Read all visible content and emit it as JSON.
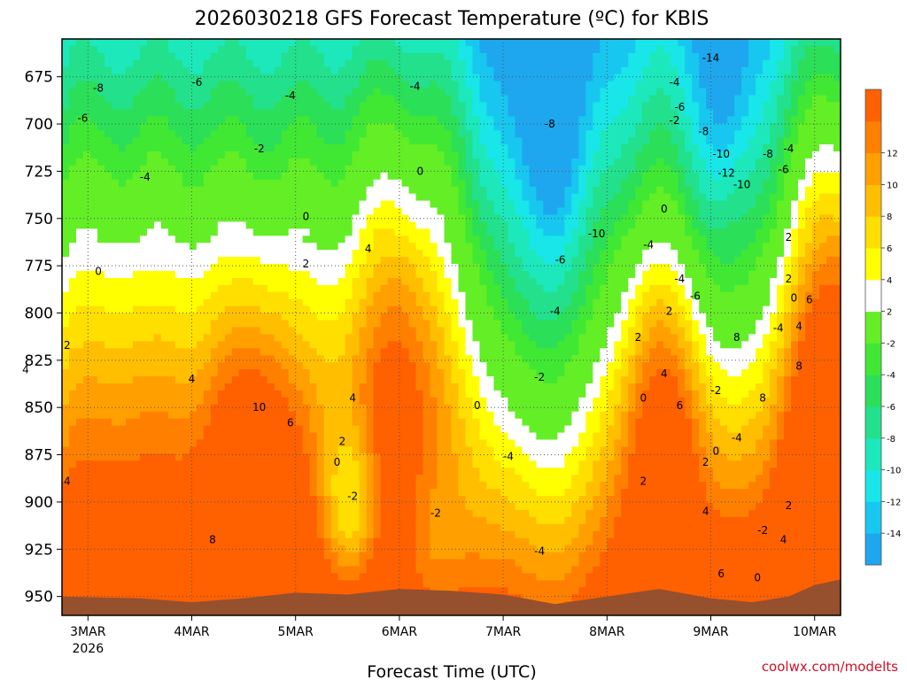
{
  "chart_data": {
    "type": "heatmap",
    "title": "2026030218 GFS Forecast Temperature (ºC) for KBIS",
    "xlabel": "Forecast Time (UTC)",
    "ylabel": "",
    "credit": "coolwx.com/modelts",
    "y_axis": {
      "ticks": [
        "675",
        "700",
        "725",
        "750",
        "775",
        "800",
        "825",
        "850",
        "875",
        "900",
        "925",
        "950"
      ],
      "range": [
        960,
        655
      ],
      "inverted": true
    },
    "x_axis": {
      "ticks": [
        "3MAR",
        "4MAR",
        "5MAR",
        "6MAR",
        "7MAR",
        "8MAR",
        "9MAR",
        "10MAR"
      ],
      "first_tick_year": "2026",
      "range": [
        "2026-03-02T18Z",
        "2026-03-10T06Z"
      ]
    },
    "colorbar": {
      "levels": [
        -16,
        -14,
        -12,
        -10,
        -8,
        -6,
        -4,
        -2,
        2,
        4,
        6,
        8,
        10,
        12,
        14
      ],
      "tick_labels": [
        "-14",
        "-12",
        "-10",
        "-8",
        "-6",
        "-4",
        "-2",
        "2",
        "4",
        "6",
        "8",
        "10",
        "12"
      ],
      "colors": [
        "#1ea7ee",
        "#18c7f0",
        "#18e6e8",
        "#1ce8bc",
        "#22e08c",
        "#2cdf58",
        "#40e834",
        "#64ee26",
        "#ffffff",
        "#ffff00",
        "#ffdf00",
        "#ffbf00",
        "#ffa000",
        "#ff8000",
        "#ff6000"
      ]
    },
    "contour_labels": [
      {
        "t": 3.1,
        "p": 681,
        "v": "-8"
      },
      {
        "t": 4.05,
        "p": 678,
        "v": "-6"
      },
      {
        "t": 4.95,
        "p": 685,
        "v": "-4"
      },
      {
        "t": 6.15,
        "p": 680,
        "v": "-4"
      },
      {
        "t": 2.95,
        "p": 697,
        "v": "-6"
      },
      {
        "t": 4.65,
        "p": 713,
        "v": "-2"
      },
      {
        "t": 3.55,
        "p": 728,
        "v": "-4"
      },
      {
        "t": 6.2,
        "p": 725,
        "v": "0"
      },
      {
        "t": 5.1,
        "p": 749,
        "v": "0"
      },
      {
        "t": 3.1,
        "p": 778,
        "v": "0"
      },
      {
        "t": 5.1,
        "p": 774,
        "v": "2"
      },
      {
        "t": 5.7,
        "p": 766,
        "v": "4"
      },
      {
        "t": 2.8,
        "p": 817,
        "v": "2"
      },
      {
        "t": 2.4,
        "p": 830,
        "v": "4"
      },
      {
        "t": 4.0,
        "p": 835,
        "v": "4"
      },
      {
        "t": 4.65,
        "p": 850,
        "v": "10"
      },
      {
        "t": 4.95,
        "p": 858,
        "v": "6"
      },
      {
        "t": 5.55,
        "p": 845,
        "v": "4"
      },
      {
        "t": 5.45,
        "p": 868,
        "v": "2"
      },
      {
        "t": 5.4,
        "p": 879,
        "v": "0"
      },
      {
        "t": 5.55,
        "p": 897,
        "v": "-2"
      },
      {
        "t": 2.8,
        "p": 889,
        "v": "4"
      },
      {
        "t": 4.2,
        "p": 920,
        "v": "8"
      },
      {
        "t": 6.75,
        "p": 849,
        "v": "0"
      },
      {
        "t": 6.35,
        "p": 906,
        "v": "-2"
      },
      {
        "t": 7.05,
        "p": 876,
        "v": "-4"
      },
      {
        "t": 7.35,
        "p": 834,
        "v": "-2"
      },
      {
        "t": 7.45,
        "p": 700,
        "v": "-8"
      },
      {
        "t": 7.55,
        "p": 772,
        "v": "-6"
      },
      {
        "t": 7.5,
        "p": 799,
        "v": "-4"
      },
      {
        "t": 7.9,
        "p": 758,
        "v": "-10"
      },
      {
        "t": 8.4,
        "p": 764,
        "v": "-4"
      },
      {
        "t": 8.65,
        "p": 698,
        "v": "-2"
      },
      {
        "t": 9.0,
        "p": 665,
        "v": "-14"
      },
      {
        "t": 8.7,
        "p": 691,
        "v": "-6"
      },
      {
        "t": 8.65,
        "p": 678,
        "v": "-4"
      },
      {
        "t": 8.93,
        "p": 704,
        "v": "-8"
      },
      {
        "t": 9.1,
        "p": 716,
        "v": "-10"
      },
      {
        "t": 9.15,
        "p": 726,
        "v": "-12"
      },
      {
        "t": 9.3,
        "p": 732,
        "v": "-10"
      },
      {
        "t": 9.55,
        "p": 716,
        "v": "-8"
      },
      {
        "t": 9.75,
        "p": 713,
        "v": "-4"
      },
      {
        "t": 9.7,
        "p": 724,
        "v": "-6"
      },
      {
        "t": 8.55,
        "p": 745,
        "v": "0"
      },
      {
        "t": 8.7,
        "p": 782,
        "v": "-4"
      },
      {
        "t": 8.85,
        "p": 791,
        "v": "-6"
      },
      {
        "t": 8.3,
        "p": 813,
        "v": "2"
      },
      {
        "t": 8.6,
        "p": 799,
        "v": "2"
      },
      {
        "t": 8.35,
        "p": 845,
        "v": "0"
      },
      {
        "t": 8.55,
        "p": 832,
        "v": "4"
      },
      {
        "t": 8.7,
        "p": 849,
        "v": "6"
      },
      {
        "t": 8.35,
        "p": 889,
        "v": "2"
      },
      {
        "t": 8.95,
        "p": 879,
        "v": "2"
      },
      {
        "t": 9.05,
        "p": 873,
        "v": "0"
      },
      {
        "t": 9.25,
        "p": 866,
        "v": "-4"
      },
      {
        "t": 9.05,
        "p": 841,
        "v": "-2"
      },
      {
        "t": 9.25,
        "p": 813,
        "v": "8"
      },
      {
        "t": 9.65,
        "p": 808,
        "v": "-4"
      },
      {
        "t": 9.5,
        "p": 845,
        "v": "8"
      },
      {
        "t": 8.95,
        "p": 905,
        "v": "4"
      },
      {
        "t": 9.1,
        "p": 938,
        "v": "6"
      },
      {
        "t": 9.5,
        "p": 915,
        "v": "-2"
      },
      {
        "t": 9.45,
        "p": 940,
        "v": "0"
      },
      {
        "t": 9.75,
        "p": 760,
        "v": "2"
      },
      {
        "t": 9.75,
        "p": 782,
        "v": "2"
      },
      {
        "t": 9.8,
        "p": 792,
        "v": "0"
      },
      {
        "t": 9.85,
        "p": 807,
        "v": "4"
      },
      {
        "t": 9.95,
        "p": 793,
        "v": "6"
      },
      {
        "t": 9.85,
        "p": 828,
        "v": "8"
      },
      {
        "t": 9.75,
        "p": 902,
        "v": "2"
      },
      {
        "t": 9.7,
        "p": 920,
        "v": "4"
      },
      {
        "t": 7.35,
        "p": 926,
        "v": "-4"
      }
    ]
  }
}
